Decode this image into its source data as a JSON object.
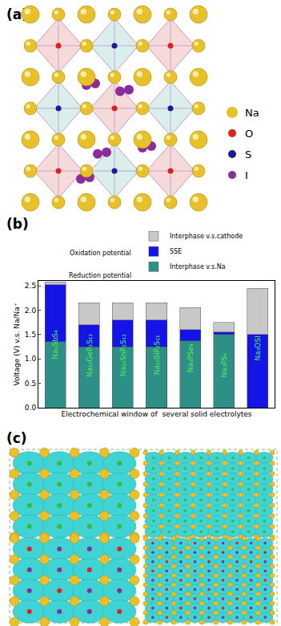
{
  "figure": {
    "panel_a": {
      "label": "(a)",
      "legend": [
        {
          "name": "Na",
          "color": "#e8c02a"
        },
        {
          "name": "O",
          "color": "#e02020"
        },
        {
          "name": "S",
          "color": "#1a1a9a"
        },
        {
          "name": "I",
          "color": "#8a2c9a"
        }
      ]
    },
    "panel_b": {
      "label": "(b)"
    },
    "panel_c": {
      "label": "(c)"
    }
  },
  "chart_data": {
    "type": "bar",
    "stacked": true,
    "x_title": "Electrochemical window of  several solid electrolytes",
    "y_title": "Voltage (V) v.s. Na/Na⁺",
    "categories": [
      "Na₃SbS₄",
      "Na₁₀GeP₂S₁₂",
      "Na₁₀SnP₂S₁₂",
      "Na₁₀SiP₂S₁₂",
      "Na₃PSe₄",
      "Na₃PS₄",
      "Na₃OSI"
    ],
    "series": [
      {
        "name": "Interphase v.s.Na",
        "color": "#2e8f86",
        "values": [
          1.35,
          1.25,
          1.25,
          1.25,
          1.37,
          1.5,
          0
        ]
      },
      {
        "name": "SSE",
        "color": "#1414e6",
        "values": [
          1.17,
          0.45,
          0.55,
          0.55,
          0.23,
          0.05,
          1.5
        ]
      },
      {
        "name": "Interphase v.s.cathode",
        "color": "#c8c8c8",
        "values": [
          0.06,
          0.45,
          0.35,
          0.35,
          0.45,
          0.2,
          0.95
        ]
      }
    ],
    "annotations": [
      "Oxidation potential",
      "Reduction potential"
    ],
    "ylim": [
      0,
      2.6
    ],
    "yticks": [
      {
        "value": 0,
        "label": "0.0"
      },
      {
        "value": 0.5,
        "label": "0.5"
      },
      {
        "value": 1,
        "label": "1.0"
      },
      {
        "value": 1.5,
        "label": "1.5"
      },
      {
        "value": 2,
        "label": "2.0"
      },
      {
        "value": 2.5,
        "label": "2.5"
      }
    ],
    "legend": "top",
    "tick_labels": "y"
  }
}
